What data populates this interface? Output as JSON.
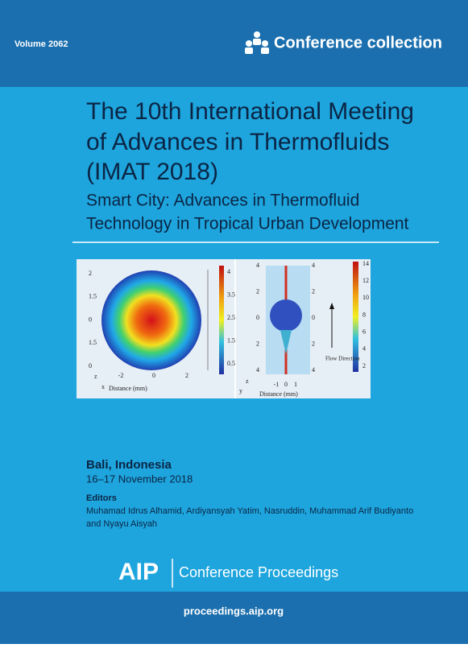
{
  "header": {
    "volume": "Volume 2062",
    "collection": "Conference collection"
  },
  "title": {
    "lines": [
      "The 10th International Meeting",
      "of Advances in Thermofluids",
      "(IMAT 2018)"
    ],
    "subtitle_lines": [
      "Smart City: Advances in Thermofluid",
      "Technology in Tropical Urban Development"
    ]
  },
  "figure": {
    "left": {
      "y_labels": [
        "2",
        "1.5",
        "0",
        "1.5",
        "0"
      ],
      "x_labels": [
        "-2",
        "0",
        "2"
      ],
      "x_title": "Distance (mm)",
      "colorbar": [
        "4",
        "3.5",
        "2.5",
        "1.5",
        "0.5"
      ],
      "axis_z": "z",
      "axis_x": "x"
    },
    "right": {
      "y_labels": [
        "4",
        "2",
        "0",
        "2",
        "4"
      ],
      "y_labels_2": [
        "4",
        "2",
        "0",
        "2",
        "4"
      ],
      "x_labels": [
        "-1",
        "0",
        "1"
      ],
      "x_title": "Distance (mm)",
      "colorbar": [
        "14",
        "12",
        "10",
        "8",
        "6",
        "4",
        "2"
      ],
      "flow_label": "Flow Direction",
      "axis_z": "z",
      "axis_y": "y"
    }
  },
  "details": {
    "location": "Bali, Indonesia",
    "dates": "16–17 November 2018",
    "editors_heading": "Editors",
    "editors_lines": [
      "Muhamad Idrus Alhamid, Ardiyansyah Yatim, Nasruddin, Muhammad Arif Budiyanto",
      "and Nyayu Aisyah"
    ]
  },
  "publisher": {
    "brand": "AIP",
    "series": "Conference Proceedings",
    "url": "proceedings.aip.org"
  }
}
